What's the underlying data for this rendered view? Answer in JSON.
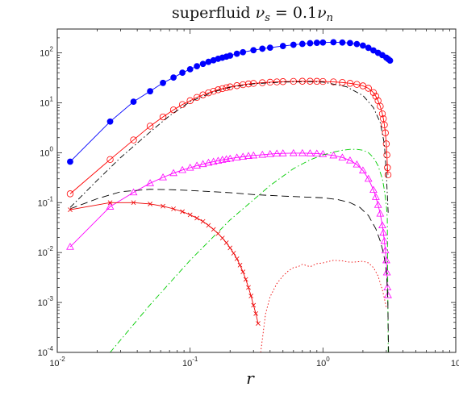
{
  "chart_data": {
    "type": "line",
    "title": "superfluid ν_s = 0.1ν_n",
    "title_parts": {
      "lead": "superfluid ",
      "nu": "ν",
      "sub_s": "s",
      "mid": " = 0.1",
      "nu2": "ν",
      "sub_n": "n"
    },
    "xlabel": "r",
    "ylabel": "",
    "x_scale": "log",
    "y_scale": "log",
    "xlim": [
      0.01,
      10
    ],
    "ylim": [
      0.0001,
      300
    ],
    "x_ticks": [
      {
        "value": 0.01,
        "base": "10",
        "exp": "-2"
      },
      {
        "value": 0.1,
        "base": "10",
        "exp": "-1"
      },
      {
        "value": 1,
        "base": "10",
        "exp": "0"
      },
      {
        "value": 10,
        "base": "10",
        "exp": ""
      }
    ],
    "y_ticks": [
      {
        "value": 0.0001,
        "base": "10",
        "exp": "-4"
      },
      {
        "value": 0.001,
        "base": "10",
        "exp": "-3"
      },
      {
        "value": 0.01,
        "base": "10",
        "exp": "-2"
      },
      {
        "value": 0.1,
        "base": "10",
        "exp": "-1"
      },
      {
        "value": 1,
        "base": "10",
        "exp": "0"
      },
      {
        "value": 10,
        "base": "10",
        "exp": "1"
      },
      {
        "value": 100,
        "base": "10",
        "exp": "2"
      }
    ],
    "grid": false,
    "series": [
      {
        "key": "blue-filled-circles",
        "color": "#0000ff",
        "line": "solid",
        "marker": "filled-circle",
        "x": [
          0.0125,
          0.025,
          0.0375,
          0.05,
          0.0625,
          0.075,
          0.0875,
          0.1,
          0.1125,
          0.125,
          0.1375,
          0.15,
          0.1625,
          0.175,
          0.1875,
          0.2,
          0.225,
          0.25,
          0.3,
          0.35,
          0.4,
          0.5,
          0.6,
          0.7,
          0.8,
          0.9,
          1.0,
          1.2,
          1.4,
          1.6,
          1.8,
          2.0,
          2.2,
          2.4,
          2.6,
          2.8,
          3.0,
          3.1,
          3.2
        ],
        "y": [
          0.66,
          4.2,
          10.5,
          17,
          25,
          32,
          40,
          47,
          54,
          60,
          66,
          71,
          76,
          80,
          84,
          88,
          96,
          103,
          113,
          121,
          127,
          137,
          145,
          151,
          156,
          159,
          161,
          163,
          161,
          157,
          150,
          140,
          126,
          112,
          100,
          90,
          80,
          75,
          70
        ]
      },
      {
        "key": "red-open-circles",
        "color": "#ff0000",
        "line": "solid",
        "marker": "open-circle",
        "x": [
          0.0125,
          0.025,
          0.0375,
          0.05,
          0.0625,
          0.075,
          0.0875,
          0.1,
          0.1125,
          0.125,
          0.1375,
          0.15,
          0.1625,
          0.175,
          0.1875,
          0.2,
          0.225,
          0.25,
          0.275,
          0.3,
          0.35,
          0.4,
          0.45,
          0.5,
          0.6,
          0.7,
          0.8,
          0.9,
          1.0,
          1.2,
          1.4,
          1.6,
          1.8,
          2.0,
          2.2,
          2.4,
          2.5,
          2.6,
          2.7,
          2.8,
          2.85,
          2.9,
          2.95,
          3.0,
          3.03,
          3.06,
          3.09
        ],
        "y": [
          0.15,
          0.73,
          1.8,
          3.4,
          5.2,
          7.2,
          9.2,
          11,
          12.8,
          14.4,
          15.8,
          17,
          18.2,
          19.2,
          20,
          20.8,
          22,
          23,
          23.8,
          24.4,
          25.2,
          25.8,
          26.2,
          26.5,
          26.8,
          27,
          27,
          26.9,
          26.7,
          26.2,
          25.5,
          24.5,
          23.3,
          21.8,
          19.5,
          16,
          13.5,
          11,
          8.5,
          6,
          4.8,
          3.6,
          2.5,
          1.5,
          0.9,
          0.5,
          0.36
        ]
      },
      {
        "key": "black-dash-dot",
        "color": "#000000",
        "line": "dashdot",
        "marker": "none",
        "x": [
          0.0125,
          0.02,
          0.03,
          0.05,
          0.07,
          0.1,
          0.15,
          0.2,
          0.3,
          0.5,
          0.8,
          1.0,
          1.5,
          2.0,
          2.4,
          2.7,
          2.9,
          3.0,
          3.05,
          3.1
        ],
        "y": [
          0.08,
          0.28,
          0.8,
          2.6,
          5.5,
          10.5,
          16.5,
          20.5,
          24,
          26,
          26.5,
          26,
          21,
          14,
          8,
          4,
          1.5,
          0.4,
          0.15,
          0.06
        ]
      },
      {
        "key": "magenta-open-triangles",
        "color": "#ff00ff",
        "line": "solid",
        "marker": "open-triangle",
        "x": [
          0.0125,
          0.025,
          0.0375,
          0.05,
          0.0625,
          0.075,
          0.0875,
          0.1,
          0.1125,
          0.125,
          0.1375,
          0.15,
          0.1625,
          0.175,
          0.1875,
          0.2,
          0.225,
          0.25,
          0.275,
          0.3,
          0.35,
          0.4,
          0.45,
          0.5,
          0.6,
          0.7,
          0.8,
          0.9,
          1.0,
          1.2,
          1.4,
          1.6,
          1.8,
          2.0,
          2.2,
          2.4,
          2.5,
          2.6,
          2.7,
          2.8,
          2.85,
          2.9,
          2.95,
          3.0,
          3.03,
          3.06,
          3.09
        ],
        "y": [
          0.013,
          0.083,
          0.16,
          0.245,
          0.32,
          0.39,
          0.45,
          0.5,
          0.55,
          0.59,
          0.63,
          0.66,
          0.69,
          0.72,
          0.74,
          0.76,
          0.8,
          0.83,
          0.86,
          0.88,
          0.91,
          0.94,
          0.96,
          0.97,
          0.98,
          0.98,
          0.97,
          0.96,
          0.94,
          0.88,
          0.8,
          0.7,
          0.58,
          0.44,
          0.3,
          0.18,
          0.13,
          0.09,
          0.06,
          0.035,
          0.025,
          0.017,
          0.011,
          0.007,
          0.004,
          0.002,
          0.0014
        ]
      },
      {
        "key": "green-dash-dot",
        "color": "#00cc00",
        "line": "dashdot",
        "marker": "none",
        "x": [
          0.025,
          0.05,
          0.1,
          0.2,
          0.4,
          0.6,
          0.8,
          1.0,
          1.2,
          1.4,
          1.6,
          1.8,
          2.0,
          2.2,
          2.4,
          2.6,
          2.8,
          2.9,
          3.0,
          3.05,
          3.1
        ],
        "y": [
          0.0001,
          0.0009,
          0.007,
          0.045,
          0.22,
          0.48,
          0.72,
          0.9,
          1.03,
          1.12,
          1.17,
          1.17,
          1.12,
          1.0,
          0.8,
          0.55,
          0.3,
          0.18,
          0.09,
          0.05,
          0.0001
        ]
      },
      {
        "key": "black-dashed",
        "color": "#000000",
        "line": "dashed",
        "marker": "none",
        "x": [
          0.0125,
          0.02,
          0.03,
          0.05,
          0.07,
          0.1,
          0.15,
          0.2,
          0.3,
          0.5,
          0.7,
          1.0,
          1.3,
          1.6,
          1.9,
          2.2,
          2.5,
          2.7,
          2.85,
          2.95,
          3.02,
          3.08,
          3.12
        ],
        "y": [
          0.075,
          0.12,
          0.165,
          0.185,
          0.182,
          0.175,
          0.165,
          0.158,
          0.145,
          0.135,
          0.13,
          0.125,
          0.115,
          0.1,
          0.08,
          0.055,
          0.03,
          0.017,
          0.01,
          0.006,
          0.0035,
          0.001,
          0.0001
        ]
      },
      {
        "key": "red-crosses",
        "color": "#ee0000",
        "line": "solid",
        "marker": "cross",
        "x": [
          0.0125,
          0.025,
          0.0375,
          0.05,
          0.0625,
          0.075,
          0.0875,
          0.1,
          0.1125,
          0.125,
          0.1375,
          0.15,
          0.1625,
          0.175,
          0.1875,
          0.2,
          0.2125,
          0.225,
          0.2375,
          0.25,
          0.2625,
          0.275,
          0.2875,
          0.3,
          0.3125,
          0.325
        ],
        "y": [
          0.072,
          0.1,
          0.1,
          0.094,
          0.085,
          0.075,
          0.066,
          0.057,
          0.049,
          0.042,
          0.035,
          0.029,
          0.024,
          0.0195,
          0.0157,
          0.0124,
          0.0097,
          0.0075,
          0.0056,
          0.0041,
          0.0029,
          0.002,
          0.00135,
          0.00088,
          0.0006,
          0.00038
        ]
      },
      {
        "key": "red-dotted",
        "color": "#ee0000",
        "line": "dotted",
        "marker": "none",
        "x": [
          0.34,
          0.37,
          0.4,
          0.45,
          0.5,
          0.55,
          0.6,
          0.65,
          0.7,
          0.75,
          0.8,
          0.9,
          1.0,
          1.1,
          1.2,
          1.4,
          1.6,
          1.8,
          2.0,
          2.2,
          2.4,
          2.6,
          2.8,
          2.9,
          3.0
        ],
        "y": [
          0.0001,
          0.0006,
          0.0013,
          0.0024,
          0.0034,
          0.0043,
          0.005,
          0.0052,
          0.0058,
          0.0055,
          0.0052,
          0.006,
          0.0062,
          0.0066,
          0.007,
          0.0068,
          0.0064,
          0.0065,
          0.0067,
          0.0062,
          0.005,
          0.0034,
          0.0018,
          0.0012,
          0.0008
        ]
      }
    ]
  }
}
